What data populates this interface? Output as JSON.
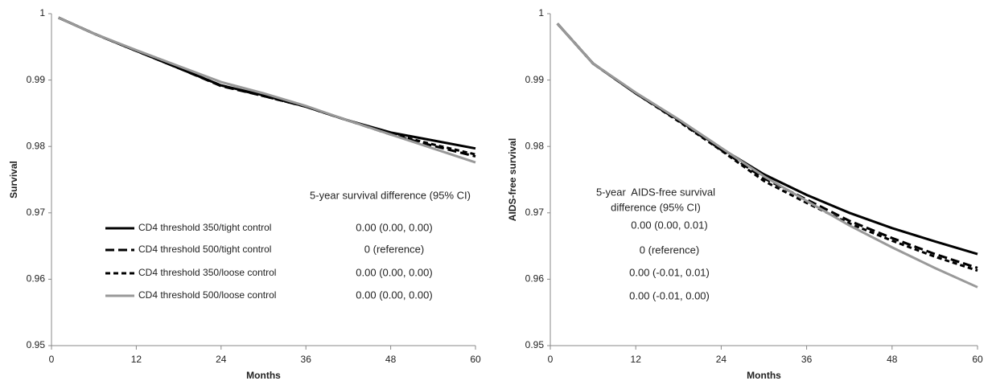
{
  "chart_data": [
    {
      "type": "line",
      "y_label": "Survival",
      "x_label": "Months",
      "x": [
        1,
        6,
        12,
        18,
        24,
        30,
        36,
        42,
        48,
        54,
        60
      ],
      "xlim": [
        0,
        60
      ],
      "xticks": [
        0,
        12,
        24,
        36,
        48,
        60
      ],
      "ylim": [
        0.95,
        1
      ],
      "yticks": [
        0.95,
        0.96,
        0.97,
        0.98,
        0.99,
        1
      ],
      "series": [
        {
          "name": "CD4 threshold 350/tight control",
          "color": "#000000",
          "dash": "solid",
          "values": [
            0.9994,
            0.997,
            0.9944,
            0.9918,
            0.9892,
            0.9877,
            0.986,
            0.9839,
            0.9821,
            0.9809,
            0.9797
          ]
        },
        {
          "name": "CD4 threshold 500/tight control",
          "color": "#000000",
          "dash": "long",
          "values": [
            0.9994,
            0.997,
            0.9944,
            0.9918,
            0.9891,
            0.9876,
            0.986,
            0.9839,
            0.9818,
            0.9801,
            0.9785
          ]
        },
        {
          "name": "CD4 threshold 350/loose control",
          "color": "#000000",
          "dash": "short",
          "values": [
            0.9994,
            0.997,
            0.9944,
            0.9918,
            0.9892,
            0.9876,
            0.986,
            0.9839,
            0.9819,
            0.9803,
            0.9788
          ]
        },
        {
          "name": "CD4 threshold 500/loose control",
          "color": "#999999",
          "dash": "solid",
          "values": [
            0.9994,
            0.997,
            0.9945,
            0.9921,
            0.9897,
            0.988,
            0.9861,
            0.9839,
            0.9818,
            0.9797,
            0.9776
          ]
        }
      ],
      "annotation_title": [
        "5-year survival difference (95% CI)"
      ],
      "annotations": [
        "0.00 (0.00, 0.00)",
        "0 (reference)",
        "0.00 (0.00, 0.00)",
        "0.00 (0.00, 0.00)"
      ]
    },
    {
      "type": "line",
      "y_label": "AIDS-free survival",
      "x_label": "Months",
      "x": [
        1,
        6,
        12,
        18,
        24,
        30,
        36,
        42,
        48,
        54,
        60
      ],
      "xlim": [
        0,
        60
      ],
      "xticks": [
        0,
        12,
        24,
        36,
        48,
        60
      ],
      "ylim": [
        0.95,
        1
      ],
      "yticks": [
        0.95,
        0.96,
        0.97,
        0.98,
        0.99,
        1
      ],
      "series": [
        {
          "color": "#000000",
          "dash": "solid",
          "values": [
            0.9985,
            0.9925,
            0.988,
            0.984,
            0.9797,
            0.9758,
            0.9727,
            0.97,
            0.9677,
            0.9657,
            0.9638
          ]
        },
        {
          "color": "#000000",
          "dash": "long",
          "values": [
            0.9985,
            0.9925,
            0.988,
            0.9839,
            0.9795,
            0.9752,
            0.972,
            0.9688,
            0.9662,
            0.9638,
            0.9617
          ]
        },
        {
          "color": "#000000",
          "dash": "short",
          "values": [
            0.9985,
            0.9925,
            0.988,
            0.9838,
            0.9794,
            0.9748,
            0.9715,
            0.9684,
            0.9658,
            0.9634,
            0.9613
          ]
        },
        {
          "color": "#999999",
          "dash": "solid",
          "values": [
            0.9985,
            0.9925,
            0.9881,
            0.9841,
            0.9798,
            0.9755,
            0.9718,
            0.9681,
            0.9648,
            0.9617,
            0.9588
          ]
        }
      ],
      "annotation_title": [
        "5-year  AIDS-free survival",
        "difference (95% CI)"
      ],
      "annotations": [
        "0.00 (0.00, 0.01)",
        "0 (reference)",
        "0.00 (-0.01, 0.01)",
        "0.00 (-0.01, 0.00)"
      ]
    }
  ]
}
